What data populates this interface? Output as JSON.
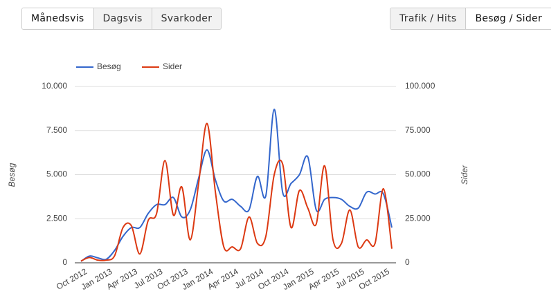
{
  "toolbar_left": [
    "Månedsvis",
    "Dagsvis",
    "Svarkoder"
  ],
  "toolbar_right": [
    "Trafik / Hits",
    "Besøg / Sider"
  ],
  "chart_data": {
    "type": "line",
    "smooth": true,
    "y_label": "Besøg",
    "y2_label": "Sider",
    "categories": [
      "Oct 2012",
      null,
      null,
      "Jan 2013",
      null,
      null,
      "Apr 2013",
      null,
      null,
      "Jul 2013",
      null,
      null,
      "Oct 2013",
      null,
      null,
      "Jan 2014",
      null,
      null,
      "Apr 2014",
      null,
      null,
      "Jul 2014",
      null,
      null,
      "Oct 2014",
      null,
      null,
      "Jan 2015",
      null,
      null,
      "Apr 2015",
      null,
      null,
      "Jul 2015",
      null,
      null,
      "Oct 2015",
      null
    ],
    "series": [
      {
        "name": "Besøg",
        "color": "#3366cc",
        "axis": "y",
        "values": [
          80,
          380,
          280,
          200,
          700,
          1500,
          2000,
          2000,
          2800,
          3300,
          3300,
          3700,
          2600,
          3000,
          4800,
          6400,
          4700,
          3500,
          3600,
          3200,
          3000,
          4900,
          3800,
          8700,
          4000,
          4500,
          5000,
          6000,
          3000,
          3600,
          3700,
          3600,
          3200,
          3100,
          4000,
          3900,
          3900,
          2000
        ]
      },
      {
        "name": "Sider",
        "color": "#dc3912",
        "axis": "y2",
        "values": [
          1000,
          3000,
          1500,
          1500,
          4000,
          20000,
          21000,
          5000,
          24000,
          28000,
          58000,
          27000,
          43000,
          13000,
          45000,
          79000,
          40000,
          9000,
          9000,
          8000,
          26000,
          11000,
          15000,
          50000,
          56000,
          20000,
          41000,
          31000,
          22000,
          55000,
          13000,
          11000,
          30000,
          9000,
          13000,
          11000,
          42000,
          8000
        ]
      }
    ],
    "ylim": [
      0,
      10000
    ],
    "yticks": [
      0,
      {
        "value": 2500,
        "label": "2.500"
      },
      {
        "value": 5000,
        "label": "5.000"
      },
      {
        "value": 7500,
        "label": "7.500"
      },
      {
        "value": 10000,
        "label": "10.000"
      }
    ],
    "y2lim": [
      0,
      100000
    ],
    "y2ticks": [
      0,
      {
        "value": 25000,
        "label": "25.000"
      },
      {
        "value": 50000,
        "label": "50.000"
      },
      {
        "value": 75000,
        "label": "75.000"
      },
      {
        "value": 100000,
        "label": "100.000"
      }
    ],
    "grid": true,
    "legend": "top"
  }
}
